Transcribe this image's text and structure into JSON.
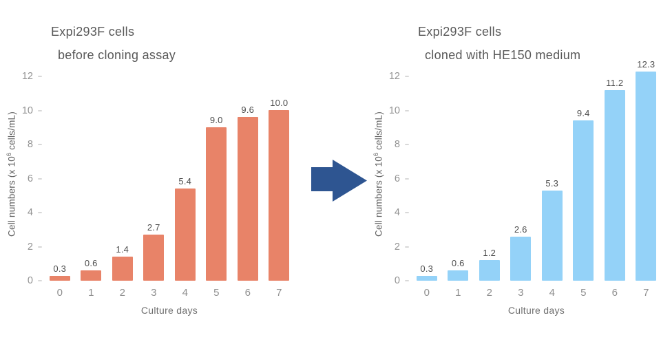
{
  "figure": {
    "arrow_color": "#2e5591"
  },
  "chart_data": [
    {
      "type": "bar",
      "title_line1": "Expi293F cells",
      "title_line2": "before cloning assay",
      "categories": [
        "0",
        "1",
        "2",
        "3",
        "4",
        "5",
        "6",
        "7"
      ],
      "values": [
        0.3,
        0.6,
        1.4,
        2.7,
        5.4,
        9.0,
        9.6,
        10.0
      ],
      "value_labels": [
        "0.3",
        "0.6",
        "1.4",
        "2.7",
        "5.4",
        "9.0",
        "9.6",
        "10.0"
      ],
      "xlabel": "Culture days",
      "ylabel_pre": "Cell numbers (x 10",
      "ylabel_sup": "6",
      "ylabel_post": " cells/mL)",
      "yticks": [
        0,
        2,
        4,
        6,
        8,
        10,
        12
      ],
      "ylim": [
        0,
        12
      ],
      "grid": false,
      "legend": "none",
      "bar_color": "#e88368"
    },
    {
      "type": "bar",
      "title_line1": "Expi293F cells",
      "title_line2": "cloned with HE150 medium",
      "categories": [
        "0",
        "1",
        "2",
        "3",
        "4",
        "5",
        "6",
        "7"
      ],
      "values": [
        0.3,
        0.6,
        1.2,
        2.6,
        5.3,
        9.4,
        11.2,
        12.3
      ],
      "value_labels": [
        "0.3",
        "0.6",
        "1.2",
        "2.6",
        "5.3",
        "9.4",
        "11.2",
        "12.3"
      ],
      "xlabel": "Culture days",
      "ylabel_pre": "Cell numbers (x 10",
      "ylabel_sup": "6",
      "ylabel_post": " cells/mL)",
      "yticks": [
        0,
        2,
        4,
        6,
        8,
        10,
        12
      ],
      "ylim": [
        0,
        12
      ],
      "grid": false,
      "legend": "none",
      "bar_color": "#94d2f8"
    }
  ]
}
